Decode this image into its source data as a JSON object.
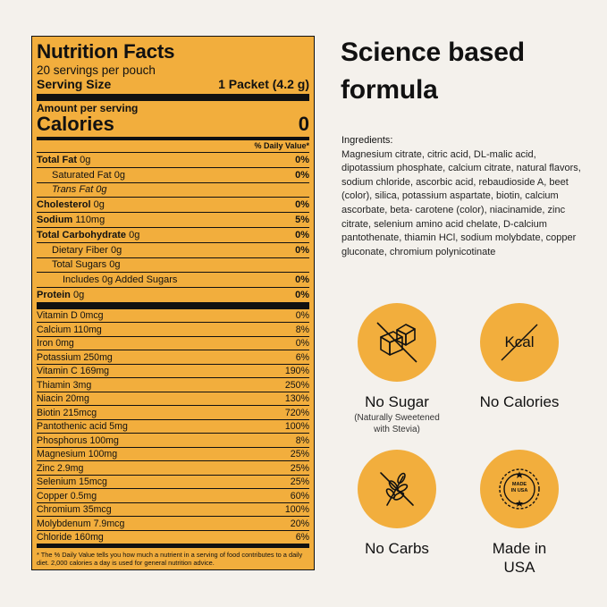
{
  "label": {
    "title": "Nutrition Facts",
    "servings": "20 servings per pouch",
    "serving_size_label": "Serving Size",
    "serving_size_value": "1 Packet (4.2 g)",
    "amount_per_serving": "Amount per serving",
    "calories_label": "Calories",
    "calories_value": "0",
    "dv_header": "% Daily Value*",
    "rows": [
      {
        "bold": "Total Fat",
        "rest": " 0g",
        "pct": "0%",
        "indent": 0
      },
      {
        "bold": "",
        "rest": "Saturated Fat 0g",
        "pct": "0%",
        "indent": 1
      },
      {
        "bold": "",
        "rest": "Trans Fat 0g",
        "pct": "",
        "indent": 1,
        "italic": true
      },
      {
        "bold": "Cholesterol",
        "rest": " 0g",
        "pct": "0%",
        "indent": 0
      },
      {
        "bold": "Sodium",
        "rest": " 110mg",
        "pct": "5%",
        "indent": 0
      },
      {
        "bold": "Total Carbohydrate",
        "rest": " 0g",
        "pct": "0%",
        "indent": 0
      },
      {
        "bold": "",
        "rest": "Dietary Fiber 0g",
        "pct": "0%",
        "indent": 1
      },
      {
        "bold": "",
        "rest": "Total Sugars 0g",
        "pct": "",
        "indent": 1
      },
      {
        "bold": "",
        "rest": "Includes 0g Added Sugars",
        "pct": "0%",
        "indent": 2
      },
      {
        "bold": "Protein",
        "rest": " 0g",
        "pct": "0%",
        "indent": 0
      }
    ],
    "vitamins": [
      {
        "name": "Vitamin D 0mcg",
        "pct": "0%"
      },
      {
        "name": "Calcium 110mg",
        "pct": "8%"
      },
      {
        "name": "Iron 0mg",
        "pct": "0%"
      },
      {
        "name": "Potassium 250mg",
        "pct": "6%"
      },
      {
        "name": "Vitamin C 169mg",
        "pct": "190%"
      },
      {
        "name": "Thiamin 3mg",
        "pct": "250%"
      },
      {
        "name": "Niacin 20mg",
        "pct": "130%"
      },
      {
        "name": "Biotin 215mcg",
        "pct": "720%"
      },
      {
        "name": "Pantothenic acid 5mg",
        "pct": "100%"
      },
      {
        "name": "Phosphorus 100mg",
        "pct": "8%"
      },
      {
        "name": "Magnesium 100mg",
        "pct": "25%"
      },
      {
        "name": "Zinc 2.9mg",
        "pct": "25%"
      },
      {
        "name": "Selenium 15mcg",
        "pct": "25%"
      },
      {
        "name": "Copper 0.5mg",
        "pct": "60%"
      },
      {
        "name": "Chromium 35mcg",
        "pct": "100%"
      },
      {
        "name": "Molybdenum 7.9mcg",
        "pct": "20%"
      },
      {
        "name": "Chloride 160mg",
        "pct": "6%"
      }
    ],
    "footnote": "* The % Daily Value tells you how much a nutrient in a serving of food contributes to a daily diet. 2,000 calories a day is used for general nutrition advice."
  },
  "headline": "Science based formula",
  "ingredients": {
    "title": "Ingredients:",
    "text": "Magnesium citrate, citric acid, DL-malic acid, dipotassium phosphate, calcium citrate, natural flavors, sodium chloride, ascorbic acid, rebaudioside A, beet (color), silica, potassium aspartate, biotin, calcium ascorbate, beta- carotene (color), niacinamide, zinc citrate, selenium amino acid chelate, D-calcium pantothenate, thiamin HCl, sodium molybdate, copper gluconate, chromium polynicotinate"
  },
  "badges": {
    "no_sugar": {
      "label": "No Sugar",
      "sub": "(Naturally Sweetened with Stevia)",
      "icon": "sugar-cubes-crossed-icon"
    },
    "no_calories": {
      "label": "No Calories",
      "icon_text": "Kcal",
      "icon": "kcal-crossed-icon"
    },
    "no_carbs": {
      "label": "No Carbs",
      "icon": "wheat-crossed-icon"
    },
    "made_in_usa": {
      "label": "Made in USA",
      "seal_text": "MADE IN USA",
      "icon": "made-in-usa-seal-icon"
    }
  },
  "colors": {
    "accent": "#f2ae3d",
    "background": "#f4f1ec",
    "text": "#111111"
  }
}
